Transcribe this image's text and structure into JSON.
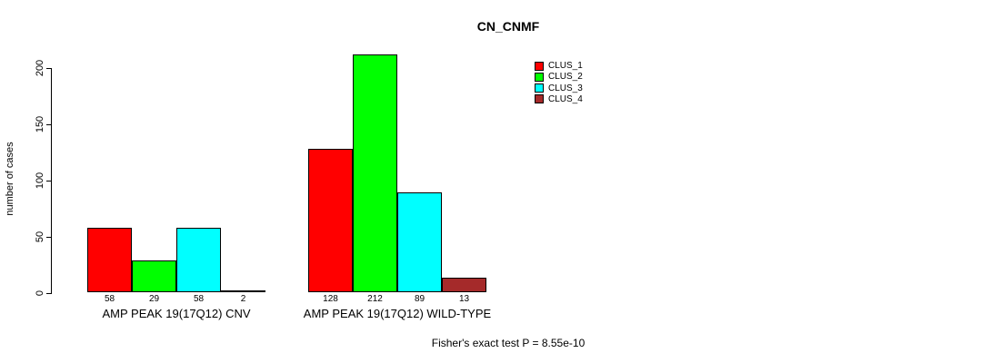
{
  "title": "CN_CNMF",
  "ylabel": "number of cases",
  "footnote": "Fisher's exact test P = 8.55e-10",
  "chart_data": {
    "type": "bar",
    "title": "CN_CNMF",
    "xlabel": "",
    "ylabel": "number of cases",
    "categories": [
      "AMP PEAK 19(17Q12) CNV",
      "AMP PEAK 19(17Q12) WILD-TYPE"
    ],
    "series": [
      {
        "name": "CLUS_1",
        "color": "#FF0000",
        "values": [
          58,
          128
        ]
      },
      {
        "name": "CLUS_2",
        "color": "#00FF00",
        "values": [
          29,
          212
        ]
      },
      {
        "name": "CLUS_3",
        "color": "#00FFFF",
        "values": [
          58,
          89
        ]
      },
      {
        "name": "CLUS_4",
        "color": "#A52A2A",
        "values": [
          2,
          13
        ]
      }
    ],
    "bar_value_labels": [
      [
        58,
        29,
        58,
        2
      ],
      [
        128,
        212,
        89,
        13
      ]
    ],
    "yticks": [
      0,
      50,
      100,
      150,
      200
    ],
    "ylim": [
      0,
      220
    ],
    "grid": false,
    "legend_position": "top-right",
    "annotation": "Fisher's exact test P = 8.55e-10"
  }
}
